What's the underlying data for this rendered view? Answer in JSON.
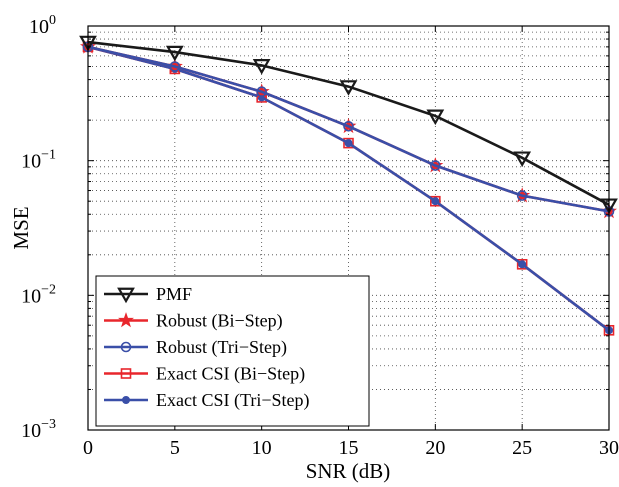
{
  "chart_data": {
    "type": "line",
    "xlabel": "SNR (dB)",
    "ylabel": "MSE",
    "xlim": [
      0,
      30
    ],
    "ylim": [
      0.001,
      1
    ],
    "yscale": "log",
    "grid": true,
    "legend_position": "bottom-left",
    "x_ticks": [
      "0",
      "5",
      "10",
      "15",
      "20",
      "25",
      "30"
    ],
    "y_ticks": [
      {
        "base": "10",
        "exp": "0"
      },
      {
        "base": "10",
        "exp": "−1"
      },
      {
        "base": "10",
        "exp": "−2"
      },
      {
        "base": "10",
        "exp": "−3"
      }
    ],
    "x": [
      0,
      5,
      10,
      15,
      20,
      25,
      30
    ],
    "series": [
      {
        "name": "PMF",
        "color": "#1a1a1a",
        "marker": "triangle-down",
        "values": [
          0.76,
          0.64,
          0.51,
          0.355,
          0.215,
          0.105,
          0.047
        ]
      },
      {
        "name": "Robust (Bi−Step)",
        "color": "#e8262c",
        "marker": "star",
        "values": [
          0.7,
          0.5,
          0.325,
          0.18,
          0.092,
          0.055,
          0.042
        ]
      },
      {
        "name": "Robust (Tri−Step)",
        "color": "#3a4fa8",
        "marker": "circle-open",
        "values": [
          0.7,
          0.5,
          0.325,
          0.18,
          0.092,
          0.055,
          0.042
        ]
      },
      {
        "name": "Exact CSI (Bi−Step)",
        "color": "#e8262c",
        "marker": "square-open",
        "values": [
          0.7,
          0.48,
          0.295,
          0.135,
          0.05,
          0.017,
          0.0055
        ]
      },
      {
        "name": "Exact CSI (Tri−Step)",
        "color": "#3a4fa8",
        "marker": "circle-filled",
        "values": [
          0.7,
          0.48,
          0.295,
          0.135,
          0.05,
          0.017,
          0.0055
        ]
      }
    ]
  }
}
